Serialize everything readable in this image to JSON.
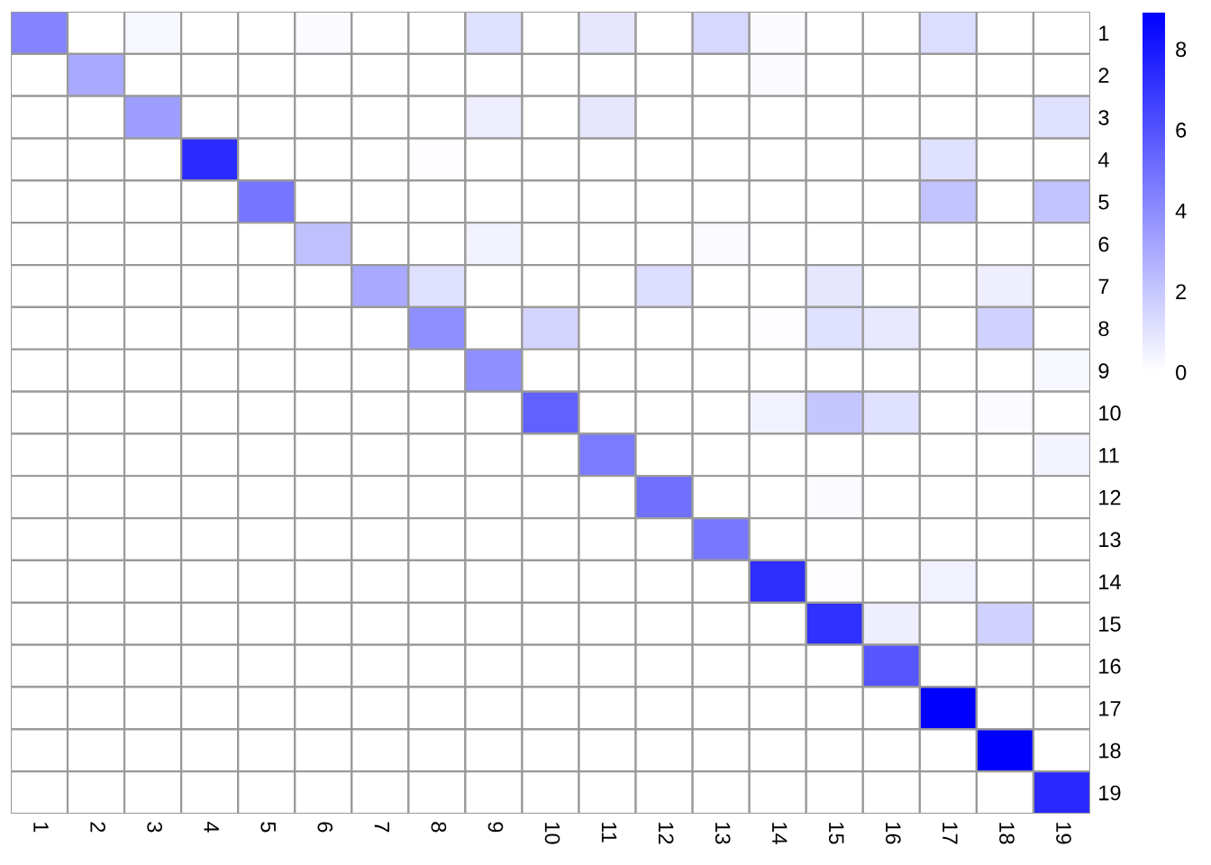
{
  "chart_data": {
    "type": "heatmap",
    "categories": [
      "1",
      "2",
      "3",
      "4",
      "5",
      "6",
      "7",
      "8",
      "9",
      "10",
      "11",
      "12",
      "13",
      "14",
      "15",
      "16",
      "17",
      "18",
      "19"
    ],
    "y_categories": [
      "1",
      "2",
      "3",
      "4",
      "5",
      "6",
      "7",
      "8",
      "9",
      "10",
      "11",
      "12",
      "13",
      "14",
      "15",
      "16",
      "17",
      "18",
      "19"
    ],
    "colors": [
      "#ffffff",
      "#0000ff"
    ],
    "clim": [
      0,
      8.9
    ],
    "cticks": [
      0,
      2,
      4,
      6,
      8
    ],
    "cells": [
      [
        4.3,
        0,
        0.3,
        0,
        0,
        0.2,
        0,
        0,
        1.1,
        0,
        0.9,
        0,
        1.4,
        0.2,
        0,
        0,
        1.2,
        0,
        0
      ],
      [
        0,
        3.0,
        0,
        0,
        0,
        0,
        0,
        0,
        0,
        0,
        0,
        0,
        0,
        0.2,
        0,
        0,
        0,
        0,
        0
      ],
      [
        0,
        0,
        3.4,
        0,
        0,
        0,
        0,
        0,
        0.6,
        0,
        0.9,
        0,
        0,
        0,
        0,
        0,
        0,
        0,
        1.1
      ],
      [
        0,
        0,
        0,
        7.4,
        0,
        0,
        0,
        0.1,
        0,
        0,
        0,
        0,
        0,
        0,
        0,
        0,
        1.1,
        0,
        0
      ],
      [
        0,
        0,
        0,
        0,
        4.8,
        0,
        0,
        0,
        0,
        0,
        0,
        0,
        0,
        0,
        0,
        0,
        2.1,
        0,
        2.1
      ],
      [
        0,
        0,
        0,
        0,
        0,
        2.2,
        0,
        0,
        0.5,
        0,
        0,
        0,
        0.2,
        0,
        0,
        0,
        0,
        0,
        0
      ],
      [
        0,
        0,
        0,
        0,
        0,
        0,
        3.0,
        1.1,
        0,
        0,
        0,
        1.2,
        0,
        0,
        0.9,
        0,
        0,
        0.6,
        0
      ],
      [
        0,
        0,
        0,
        0,
        0,
        0,
        0,
        3.9,
        0,
        1.5,
        0,
        0,
        0,
        0.1,
        1.1,
        0.8,
        0,
        1.6,
        0
      ],
      [
        0,
        0,
        0,
        0,
        0,
        0,
        0,
        0,
        3.9,
        0,
        0,
        0,
        0,
        0,
        0,
        0,
        0,
        0,
        0.3
      ],
      [
        0,
        0,
        0,
        0,
        0,
        0,
        0,
        0,
        0,
        5.5,
        0,
        0,
        0,
        0.5,
        2.0,
        1.1,
        0,
        0.2,
        0
      ],
      [
        0,
        0,
        0,
        0,
        0,
        0,
        0,
        0,
        0,
        0,
        4.6,
        0,
        0,
        0,
        0,
        0,
        0,
        0,
        0.4
      ],
      [
        0,
        0,
        0,
        0,
        0,
        0,
        0,
        0,
        0,
        0,
        0,
        5.0,
        0,
        0,
        0.2,
        0,
        0,
        0,
        0
      ],
      [
        0,
        0,
        0,
        0,
        0,
        0,
        0,
        0,
        0,
        0,
        0,
        0,
        4.7,
        0,
        0,
        0,
        0,
        0,
        0
      ],
      [
        0,
        0,
        0,
        0,
        0,
        0,
        0,
        0,
        0,
        0,
        0,
        0,
        0,
        7.3,
        0.1,
        0,
        0.5,
        0,
        0
      ],
      [
        0,
        0,
        0,
        0,
        0,
        0,
        0,
        0,
        0,
        0,
        0,
        0,
        0,
        0,
        7.2,
        0.6,
        0,
        1.6,
        0
      ],
      [
        0,
        0,
        0,
        0,
        0,
        0,
        0,
        0,
        0,
        0,
        0,
        0,
        0,
        0,
        0,
        5.9,
        0,
        0,
        0
      ],
      [
        0,
        0,
        0,
        0,
        0,
        0,
        0,
        0,
        0,
        0,
        0,
        0,
        0,
        0,
        0,
        0,
        8.9,
        0,
        0
      ],
      [
        0,
        0,
        0,
        0,
        0,
        0,
        0,
        0,
        0,
        0,
        0,
        0,
        0,
        0,
        0,
        0,
        0,
        8.9,
        0
      ],
      [
        0,
        0,
        0,
        0,
        0,
        0,
        0,
        0,
        0,
        0,
        0,
        0,
        0,
        0,
        0,
        0,
        0,
        0,
        7.5
      ]
    ]
  }
}
